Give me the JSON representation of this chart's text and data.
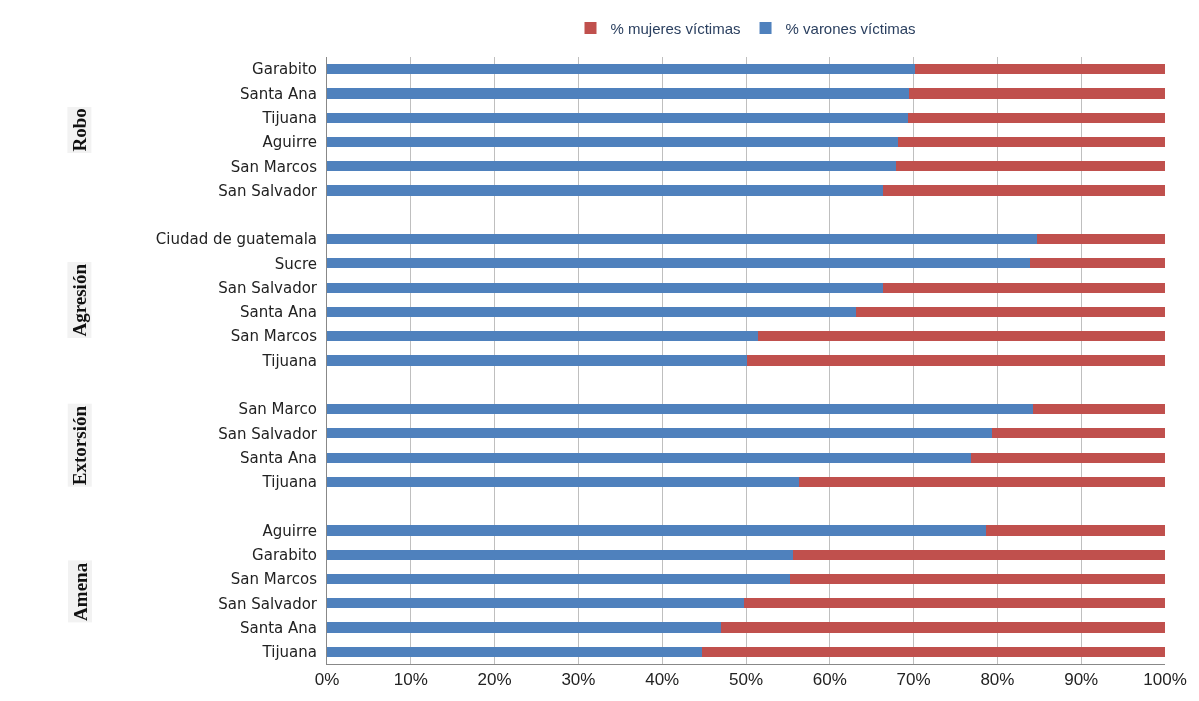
{
  "chart_data": {
    "type": "bar",
    "orientation": "horizontal",
    "stacked": true,
    "categories": [
      "Garabito",
      "Santa Ana",
      "Tijuana",
      "Aguirre",
      "San Marcos",
      "San Salvador",
      null,
      "Ciudad de guatemala",
      "Sucre",
      "San Salvador",
      "Santa Ana",
      "San Marcos",
      "Tijuana",
      null,
      "San Marco",
      "San Salvador",
      "Santa Ana",
      "Tijuana",
      null,
      "Aguirre",
      "Garabito",
      "San Marcos",
      "San Salvador",
      "Santa Ana",
      "Tijuana"
    ],
    "series": [
      {
        "name": "% varones víctimas",
        "color": "#4f81bd",
        "values": [
          70.2,
          69.5,
          69.3,
          68.1,
          67.9,
          66.3,
          null,
          84.7,
          83.9,
          66.3,
          63.1,
          51.4,
          50.1,
          null,
          84.3,
          79.4,
          76.9,
          56.3,
          null,
          78.6,
          55.6,
          55.3,
          49.8,
          47.0,
          44.7
        ]
      },
      {
        "name": "% mujeres víctimas",
        "color": "#c0504d",
        "values": [
          29.8,
          30.5,
          30.7,
          31.9,
          32.1,
          33.7,
          null,
          15.3,
          16.1,
          33.7,
          36.9,
          48.6,
          49.9,
          null,
          15.7,
          20.6,
          23.1,
          43.7,
          null,
          21.4,
          44.4,
          44.7,
          50.2,
          53.0,
          55.3
        ]
      }
    ],
    "annotations": [
      "Robo",
      "Agresión",
      "Extorsión",
      "Amena"
    ],
    "xlim": [
      0,
      100
    ],
    "xticks": [
      {
        "value": 0,
        "label": "0%"
      },
      {
        "value": 10,
        "label": "10%"
      },
      {
        "value": 20,
        "label": "20%"
      },
      {
        "value": 30,
        "label": "30%"
      },
      {
        "value": 40,
        "label": "40%"
      },
      {
        "value": 50,
        "label": "50%"
      },
      {
        "value": 60,
        "label": "60%"
      },
      {
        "value": 70,
        "label": "70%"
      },
      {
        "value": 80,
        "label": "80%"
      },
      {
        "value": 90,
        "label": "90%"
      },
      {
        "value": 100,
        "label": "100%"
      }
    ],
    "grid": "x",
    "legend": "top"
  }
}
